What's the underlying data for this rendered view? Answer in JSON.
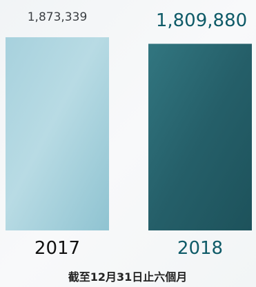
{
  "chart_data": {
    "type": "bar",
    "categories": [
      "2017",
      "2018"
    ],
    "values": [
      1873339,
      1809880
    ],
    "value_labels": [
      "1,873,339",
      "1,809,880"
    ],
    "subtitle": "截至12月31日止六個月",
    "colors": [
      "#a9d2de",
      "#2f6f77"
    ],
    "label_colors": {
      "value_2017": "#3b3f43",
      "value_2018": "#0f5b68",
      "category_2017": "#111111",
      "category_2018": "#0f5b68"
    },
    "grid": false,
    "legend": "none"
  }
}
